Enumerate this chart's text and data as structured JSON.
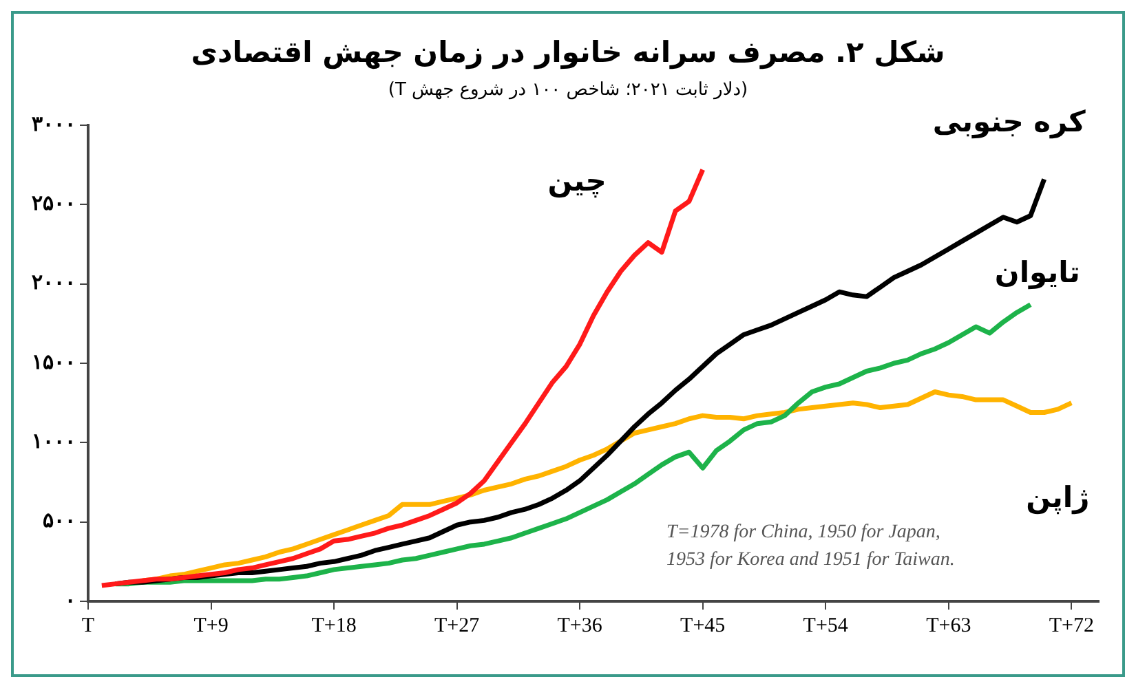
{
  "chart_data": {
    "type": "line",
    "title": "شکل ۲. مصرف سرانه خانوار در زمان جهش اقتصادی",
    "subtitle": "(دلار ثابت ۲۰۲۱؛ شاخص ۱۰۰ در شروع جهش T)",
    "categories": [
      "T",
      null,
      null,
      null,
      null,
      null,
      null,
      null,
      null,
      "T+9",
      null,
      null,
      null,
      null,
      null,
      null,
      null,
      null,
      "T+18",
      null,
      null,
      null,
      null,
      null,
      null,
      null,
      null,
      "T+27",
      null,
      null,
      null,
      null,
      null,
      null,
      null,
      null,
      "T+36",
      null,
      null,
      null,
      null,
      null,
      null,
      null,
      null,
      "T+45",
      null,
      null,
      null,
      null,
      null,
      null,
      null,
      null,
      "T+54",
      null,
      null,
      null,
      null,
      null,
      null,
      null,
      null,
      "T+63",
      null,
      null,
      null,
      null,
      null,
      null,
      null,
      null,
      "T+72",
      null,
      null
    ],
    "ylim": [
      0,
      3000
    ],
    "yticks": [
      {
        "value": 0,
        "label": "۰"
      },
      {
        "value": 500,
        "label": "۵۰۰"
      },
      {
        "value": 1000,
        "label": "۱۰۰۰"
      },
      {
        "value": 1500,
        "label": "۱۵۰۰"
      },
      {
        "value": 2000,
        "label": "۲۰۰۰"
      },
      {
        "value": 2500,
        "label": "۲۵۰۰"
      },
      {
        "value": 3000,
        "label": "۳۰۰۰"
      }
    ],
    "grid": false,
    "legend": false,
    "marker": "none",
    "line_style": "solid",
    "annotations": [
      "T=1978 for China, 1950 for Japan,",
      "1953 for Korea and 1951 for Taiwan."
    ],
    "series": [
      {
        "name": "چین",
        "color": "#ff1a1a",
        "values": [
          null,
          100,
          110,
          120,
          130,
          140,
          140,
          150,
          160,
          170,
          180,
          200,
          210,
          230,
          250,
          270,
          300,
          330,
          380,
          390,
          410,
          430,
          460,
          480,
          510,
          540,
          580,
          620,
          680,
          760,
          880,
          1000,
          1120,
          1250,
          1380,
          1480,
          1620,
          1800,
          1950,
          2080,
          2180,
          2260,
          2200,
          2460,
          2520,
          2720,
          null,
          null,
          null,
          null,
          null,
          null,
          null,
          null,
          null,
          null,
          null,
          null,
          null,
          null,
          null,
          null,
          null,
          null,
          null,
          null,
          null,
          null,
          null,
          null,
          null,
          null,
          null,
          null,
          null
        ]
      },
      {
        "name": "کره جنوبی",
        "color": "#000000",
        "values": [
          null,
          null,
          110,
          120,
          120,
          130,
          140,
          150,
          150,
          160,
          170,
          180,
          180,
          190,
          200,
          210,
          220,
          240,
          250,
          270,
          290,
          320,
          340,
          360,
          380,
          400,
          440,
          480,
          500,
          510,
          530,
          560,
          580,
          610,
          650,
          700,
          760,
          840,
          920,
          1010,
          1100,
          1180,
          1250,
          1330,
          1400,
          1480,
          1560,
          1620,
          1680,
          1710,
          1740,
          1780,
          1820,
          1860,
          1900,
          1950,
          1930,
          1920,
          1980,
          2040,
          2080,
          2120,
          2170,
          2220,
          2270,
          2320,
          2370,
          2420,
          2390,
          2430,
          2660,
          null,
          null,
          null,
          null
        ]
      },
      {
        "name": "تایوان",
        "color": "#1db34a",
        "values": [
          null,
          null,
          110,
          110,
          120,
          120,
          120,
          130,
          130,
          130,
          130,
          130,
          130,
          140,
          140,
          150,
          160,
          180,
          200,
          210,
          220,
          230,
          240,
          260,
          270,
          290,
          310,
          330,
          350,
          360,
          380,
          400,
          430,
          460,
          490,
          520,
          560,
          600,
          640,
          690,
          740,
          800,
          860,
          910,
          940,
          840,
          950,
          1010,
          1080,
          1120,
          1130,
          1170,
          1250,
          1320,
          1350,
          1370,
          1410,
          1450,
          1470,
          1500,
          1520,
          1560,
          1590,
          1630,
          1680,
          1730,
          1690,
          1760,
          1820,
          1870,
          null,
          null,
          null,
          null,
          null
        ]
      },
      {
        "name": "ژاپن",
        "color": "#ffb300",
        "values": [
          null,
          null,
          null,
          null,
          130,
          140,
          160,
          170,
          190,
          210,
          230,
          240,
          260,
          280,
          310,
          330,
          360,
          390,
          420,
          450,
          480,
          510,
          540,
          610,
          610,
          610,
          630,
          650,
          670,
          700,
          720,
          740,
          770,
          790,
          820,
          850,
          890,
          920,
          960,
          1010,
          1060,
          1080,
          1100,
          1120,
          1150,
          1170,
          1160,
          1160,
          1150,
          1170,
          1180,
          1190,
          1210,
          1220,
          1230,
          1240,
          1250,
          1240,
          1220,
          1230,
          1240,
          1280,
          1320,
          1300,
          1290,
          1270,
          1270,
          1270,
          1230,
          1190,
          1190,
          1210,
          1250,
          null,
          null
        ]
      }
    ]
  }
}
